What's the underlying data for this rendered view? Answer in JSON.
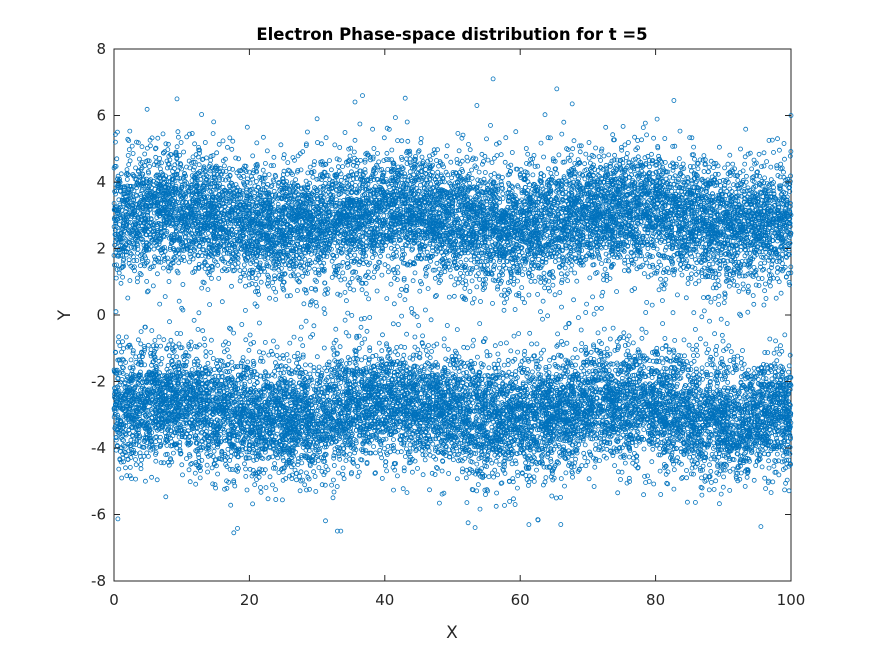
{
  "chart_data": {
    "type": "scatter",
    "title": "Electron Phase-space distribution for t =5",
    "xlabel": "X",
    "ylabel": "Y",
    "xlim": [
      0,
      100
    ],
    "ylim": [
      -8,
      8
    ],
    "xticks": [
      0,
      20,
      40,
      60,
      80,
      100
    ],
    "yticks": [
      -8,
      -6,
      -4,
      -2,
      0,
      2,
      4,
      6,
      8
    ],
    "grid": false,
    "marker": "circle-open",
    "series_color": "#0072BD",
    "distribution": {
      "total_points": 20000,
      "x_range": [
        0,
        100
      ],
      "bands": [
        {
          "y_center": 2.9,
          "y_spread": 0.9,
          "share": 0.5
        },
        {
          "y_center": -2.9,
          "y_spread": 0.9,
          "share": 0.5
        }
      ]
    },
    "points": [
      [
        56,
        7.1
      ],
      [
        36.7,
        6.6
      ],
      [
        9.3,
        6.5
      ],
      [
        65.4,
        6.8
      ],
      [
        82.7,
        6.45
      ],
      [
        53.6,
        6.3
      ],
      [
        30,
        5.9
      ],
      [
        100,
        6.0
      ],
      [
        0.5,
        5.5
      ],
      [
        0.2,
        5.2
      ],
      [
        17.7,
        -6.55
      ],
      [
        33,
        -6.5
      ],
      [
        33.5,
        -6.5
      ],
      [
        66,
        -6.3
      ],
      [
        52.3,
        -6.25
      ],
      [
        0.3,
        0.1
      ],
      [
        16,
        0.4
      ],
      [
        10,
        0.2
      ],
      [
        46,
        0.15
      ],
      [
        63,
        0.1
      ],
      [
        96,
        0.3
      ],
      [
        4,
        -0.5
      ],
      [
        58,
        0.5
      ],
      [
        72,
        0.2
      ],
      [
        29,
        0.3
      ]
    ]
  }
}
